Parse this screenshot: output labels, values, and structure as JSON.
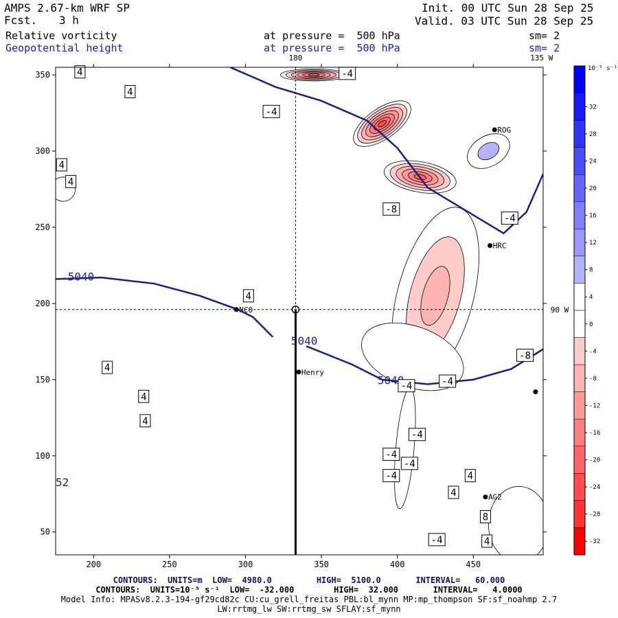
{
  "header": {
    "model": "AMPS 2.67-km WRF SP",
    "fcst_label": "Fcst.",
    "fcst_value": "3 h",
    "init": "Init. 00 UTC Sun 28 Sep 25",
    "valid": "Valid. 03 UTC Sun 28 Sep 25",
    "field1_name": "Relative vorticity",
    "field1_level": "at pressure =  500 hPa",
    "field1_sm": "sm= 2",
    "field2_name": "Geopotential height",
    "field2_level": "at pressure =  500 hPa",
    "field2_sm": "sm= 2"
  },
  "colors": {
    "height_contour": "#1c1c8c",
    "text_blue": "#1a1acc",
    "footer_navy": "#101070"
  },
  "chart_data": {
    "type": "heatmap",
    "title": "Relative vorticity and Geopotential height at 500 hPa",
    "x_ticks": [
      200,
      250,
      300,
      350,
      400,
      450
    ],
    "y_ticks": [
      50,
      100,
      150,
      200,
      250,
      300,
      350
    ],
    "xlim": [
      175,
      496
    ],
    "ylim": [
      35,
      355
    ],
    "colorbar": {
      "unit_label": "10⁻⁵ s⁻¹",
      "ticks": [
        32,
        28,
        24,
        20,
        16,
        12,
        8,
        4,
        0,
        -4,
        -8,
        -12,
        -16,
        -20,
        -24,
        -28,
        -32
      ],
      "levels": [
        36,
        32,
        28,
        24,
        20,
        16,
        12,
        8,
        4,
        0,
        -4,
        -8,
        -12,
        -16,
        -20,
        -24,
        -28,
        -32,
        -36
      ],
      "colors": [
        "#0000ff",
        "#1a1aff",
        "#3333ff",
        "#4d4dff",
        "#6666ff",
        "#8080ff",
        "#9999ff",
        "#b3b3ff",
        "#ffffff",
        "#ffffff",
        "#ffcccc",
        "#ffb3b3",
        "#ff9999",
        "#ff8080",
        "#ff6666",
        "#ff4d4d",
        "#ff3333",
        "#ff0000"
      ]
    },
    "meridian_labels": [
      {
        "text": "180",
        "x": 333,
        "y": 356
      },
      {
        "text": "135 W",
        "x": 495,
        "y": 356
      },
      {
        "text": "90 W",
        "x": 496,
        "y": 196
      }
    ],
    "crosshair": {
      "x": 333,
      "y": 196
    },
    "transect": {
      "x": 333,
      "y_from": 196,
      "y_to": 35
    },
    "stations": [
      {
        "name": "NCO",
        "x": 294,
        "y": 196
      },
      {
        "name": "Henry",
        "x": 335,
        "y": 155
      },
      {
        "name": "ROG",
        "x": 464,
        "y": 314
      },
      {
        "name": "HRC",
        "x": 461,
        "y": 238
      },
      {
        "name": "AG2",
        "x": 458,
        "y": 73
      },
      {
        "name": "",
        "x": 491,
        "y": 142
      }
    ],
    "height_contours": [
      {
        "value": 5040,
        "points": [
          [
            175,
            216
          ],
          [
            205,
            217
          ],
          [
            240,
            213
          ],
          [
            270,
            205
          ],
          [
            295,
            196
          ],
          [
            305,
            191
          ],
          [
            318,
            178
          ]
        ]
      },
      {
        "value": 5040,
        "points": [
          [
            340,
            172
          ],
          [
            370,
            160
          ],
          [
            390,
            150
          ],
          [
            420,
            147
          ],
          [
            450,
            150
          ],
          [
            475,
            157
          ],
          [
            496,
            170
          ]
        ]
      },
      {
        "value": 4980,
        "points": [
          [
            290,
            355
          ],
          [
            320,
            342
          ],
          [
            350,
            333
          ],
          [
            380,
            320
          ],
          [
            400,
            302
          ],
          [
            420,
            276
          ],
          [
            450,
            258
          ],
          [
            470,
            246
          ],
          [
            485,
            260
          ],
          [
            496,
            285
          ]
        ]
      }
    ],
    "height_labels": [
      {
        "text": "5040",
        "x": 183,
        "y": 215
      },
      {
        "text": "5040",
        "x": 330,
        "y": 173
      },
      {
        "text": "5040",
        "x": 387,
        "y": 147
      },
      {
        "text": "52",
        "x": 175,
        "y": 80
      }
    ],
    "vorticity_labels": [
      {
        "text": "4",
        "x": 191,
        "y": 352
      },
      {
        "text": "4",
        "x": 224,
        "y": 339
      },
      {
        "text": "4",
        "x": 179,
        "y": 291
      },
      {
        "text": "4",
        "x": 185,
        "y": 280
      },
      {
        "text": "-4",
        "x": 367,
        "y": 351
      },
      {
        "text": "-4",
        "x": 317,
        "y": 326
      },
      {
        "text": "-8",
        "x": 396,
        "y": 262
      },
      {
        "text": "-4",
        "x": 474,
        "y": 256
      },
      {
        "text": "4",
        "x": 302,
        "y": 205
      },
      {
        "text": "-8",
        "x": 484,
        "y": 166
      },
      {
        "text": "4",
        "x": 209,
        "y": 158
      },
      {
        "text": "-4",
        "x": 406,
        "y": 146
      },
      {
        "text": "-4",
        "x": 433,
        "y": 149
      },
      {
        "text": "4",
        "x": 233,
        "y": 139
      },
      {
        "text": "4",
        "x": 234,
        "y": 123
      },
      {
        "text": "-4",
        "x": 413,
        "y": 114
      },
      {
        "text": "-4",
        "x": 396,
        "y": 101
      },
      {
        "text": "-4",
        "x": 408,
        "y": 95
      },
      {
        "text": "-4",
        "x": 396,
        "y": 87
      },
      {
        "text": "4",
        "x": 448,
        "y": 87
      },
      {
        "text": "4",
        "x": 437,
        "y": 76
      },
      {
        "text": "8",
        "x": 458,
        "y": 60
      },
      {
        "text": "-4",
        "x": 426,
        "y": 45
      },
      {
        "text": "4",
        "x": 459,
        "y": 44
      }
    ],
    "vorticity_features": [
      {
        "cx": 345,
        "cy": 350,
        "rx": 22,
        "ry": 4,
        "angle": 0,
        "peak": -24
      },
      {
        "cx": 390,
        "cy": 318,
        "rx": 22,
        "ry": 10,
        "angle": -35,
        "peak": -28
      },
      {
        "cx": 415,
        "cy": 283,
        "rx": 24,
        "ry": 10,
        "angle": 10,
        "peak": -24
      },
      {
        "cx": 425,
        "cy": 205,
        "rx": 25,
        "ry": 60,
        "angle": 15,
        "peak": -12
      },
      {
        "cx": 410,
        "cy": 165,
        "rx": 35,
        "ry": 20,
        "angle": 20,
        "peak": -4
      },
      {
        "cx": 405,
        "cy": 105,
        "rx": 6,
        "ry": 40,
        "angle": 5,
        "peak": -4
      },
      {
        "cx": 480,
        "cy": 55,
        "rx": 20,
        "ry": 25,
        "angle": 0,
        "peak": 4
      },
      {
        "cx": 460,
        "cy": 300,
        "rx": 15,
        "ry": 10,
        "angle": -30,
        "peak": 8
      },
      {
        "cx": 180,
        "cy": 275,
        "rx": 8,
        "ry": 8,
        "angle": 0,
        "peak": 4
      }
    ]
  },
  "footer": {
    "line1_a": "CONTOURS:  UNITS=m  LOW=  4980.0         HIGH=  5100.0       INTERVAL=   60.000",
    "line2": "CONTOURS:  UNITS=10⁻⁵ s⁻¹  LOW=  -32.000        HIGH=  32.000       INTERVAL=   4.0000",
    "line3": "Model Info: MPASv8.2.3-194-gf29cd82c CU:cu_grell_freitas PBL:bl_mynn MP:mp_thompson SF:sf_noahmp 2.7",
    "line4": "LW:rrtmg_lw SW:rrtmg_sw SFLAY:sf_mynn"
  }
}
